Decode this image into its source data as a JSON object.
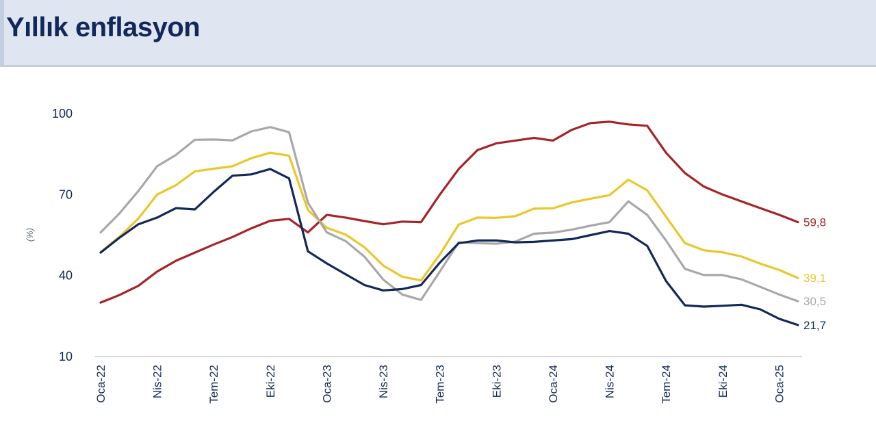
{
  "header": {
    "title": "Yıllık enflasyon"
  },
  "chart_data": {
    "type": "line",
    "title": "Yıllık enflasyon",
    "ylabel": "(%)",
    "xlabel": "",
    "ylim": [
      10,
      100
    ],
    "yticks": [
      10,
      40,
      70,
      100
    ],
    "grid": false,
    "months": [
      "2022-01",
      "2022-02",
      "2022-03",
      "2022-04",
      "2022-05",
      "2022-06",
      "2022-07",
      "2022-08",
      "2022-09",
      "2022-10",
      "2022-11",
      "2022-12",
      "2023-01",
      "2023-02",
      "2023-03",
      "2023-04",
      "2023-05",
      "2023-06",
      "2023-07",
      "2023-08",
      "2023-09",
      "2023-10",
      "2023-11",
      "2023-12",
      "2024-01",
      "2024-02",
      "2024-03",
      "2024-04",
      "2024-05",
      "2024-06",
      "2024-07",
      "2024-08",
      "2024-09",
      "2024-10",
      "2024-11",
      "2024-12",
      "2025-01",
      "2025-02"
    ],
    "x_tick_labels": [
      {
        "month": "2022-01",
        "label": "Oca-22"
      },
      {
        "month": "2022-04",
        "label": "Nis-22"
      },
      {
        "month": "2022-07",
        "label": "Tem-22"
      },
      {
        "month": "2022-10",
        "label": "Eki-22"
      },
      {
        "month": "2023-01",
        "label": "Oca-23"
      },
      {
        "month": "2023-04",
        "label": "Nis-23"
      },
      {
        "month": "2023-07",
        "label": "Tem-23"
      },
      {
        "month": "2023-10",
        "label": "Eki-23"
      },
      {
        "month": "2024-01",
        "label": "Oca-24"
      },
      {
        "month": "2024-04",
        "label": "Nis-24"
      },
      {
        "month": "2024-07",
        "label": "Tem-24"
      },
      {
        "month": "2024-10",
        "label": "Eki-24"
      },
      {
        "month": "2025-01",
        "label": "Oca-25"
      }
    ],
    "series": [
      {
        "color": "#a82326",
        "end_label": "59,8",
        "values": [
          30.0,
          32.8,
          36.2,
          41.5,
          45.5,
          48.5,
          51.5,
          54.3,
          57.5,
          60.3,
          61.0,
          56.0,
          62.5,
          61.5,
          60.2,
          59.0,
          60.0,
          59.8,
          70.0,
          79.5,
          86.5,
          89.0,
          90.0,
          91.0,
          90.0,
          94.0,
          96.5,
          97.0,
          96.0,
          95.5,
          85.5,
          78.0,
          73.0,
          70.0,
          67.5,
          65.0,
          62.5,
          59.8
        ]
      },
      {
        "color": "#ecc629",
        "end_label": "39,1",
        "values": [
          48.7,
          54.4,
          61.1,
          70.0,
          73.5,
          78.6,
          79.6,
          80.5,
          83.5,
          85.5,
          84.4,
          64.3,
          57.7,
          55.2,
          50.5,
          43.7,
          39.6,
          38.2,
          47.8,
          58.9,
          61.5,
          61.4,
          62.0,
          64.8,
          64.9,
          67.1,
          68.5,
          69.8,
          75.5,
          71.6,
          61.8,
          52.0,
          49.4,
          48.6,
          47.1,
          44.4,
          42.1,
          39.1
        ]
      },
      {
        "color": "#a8a8aa",
        "end_label": "30,5",
        "values": [
          56.0,
          63.0,
          71.3,
          80.5,
          84.7,
          90.3,
          90.4,
          90.1,
          93.4,
          95.0,
          93.1,
          67.0,
          56.0,
          52.8,
          47.0,
          38.5,
          33.0,
          31.0,
          41.5,
          52.3,
          52.0,
          51.8,
          52.6,
          55.5,
          55.9,
          57.0,
          58.5,
          59.8,
          67.5,
          62.5,
          53.0,
          42.5,
          40.2,
          40.2,
          38.6,
          35.8,
          33.0,
          30.5
        ]
      },
      {
        "color": "#13285a",
        "end_label": "21,7",
        "values": [
          48.5,
          54.0,
          59.0,
          61.5,
          65.0,
          64.5,
          71.0,
          77.0,
          77.5,
          79.5,
          76.0,
          49.0,
          44.5,
          40.5,
          36.5,
          34.5,
          35.0,
          36.5,
          44.8,
          52.0,
          53.0,
          53.0,
          52.3,
          52.5,
          53.0,
          53.5,
          55.0,
          56.5,
          55.5,
          51.0,
          38.0,
          29.0,
          28.5,
          28.8,
          29.2,
          27.5,
          24.0,
          21.7
        ]
      }
    ]
  }
}
